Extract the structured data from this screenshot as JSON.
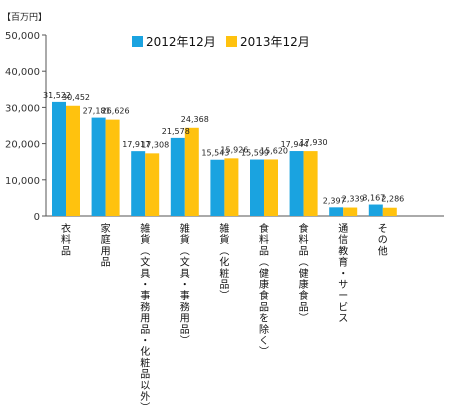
{
  "chart_data": {
    "type": "bar",
    "unit_label": "【百万円】",
    "ylim": [
      0,
      50000
    ],
    "yticks": [
      0,
      10000,
      20000,
      30000,
      40000,
      50000
    ],
    "ytick_labels": [
      "0",
      "10,000",
      "20,000",
      "30,000",
      "40,000",
      "50,000"
    ],
    "grid": false,
    "legend_position": "top",
    "categories": [
      "衣料品",
      "家庭用品",
      "雑貨（文具・事務用品・化粧品以外）",
      "雑貨（文具・事務用品）",
      "雑貨（化粧品）",
      "食料品（健康食品を除く）",
      "食料品（健康食品）",
      "通信教育・サービス",
      "その他"
    ],
    "series": [
      {
        "name": "2012年12月",
        "color": "#1aa3e0",
        "values": [
          31522,
          27181,
          17917,
          21578,
          15543,
          15599,
          17944,
          2397,
          3167
        ],
        "labels": [
          "31,522",
          "27,181",
          "17,917",
          "21,578",
          "15,543",
          "15,599",
          "17,944",
          "2,397",
          "3,167"
        ]
      },
      {
        "name": "2013年12月",
        "color": "#ffc20e",
        "values": [
          30452,
          26626,
          17308,
          24368,
          15926,
          15620,
          17930,
          2339,
          2286
        ],
        "labels": [
          "30,452",
          "26,626",
          "17,308",
          "24,368",
          "15,926",
          "15,620",
          "17,930",
          "2,339",
          "2,286"
        ]
      }
    ]
  }
}
